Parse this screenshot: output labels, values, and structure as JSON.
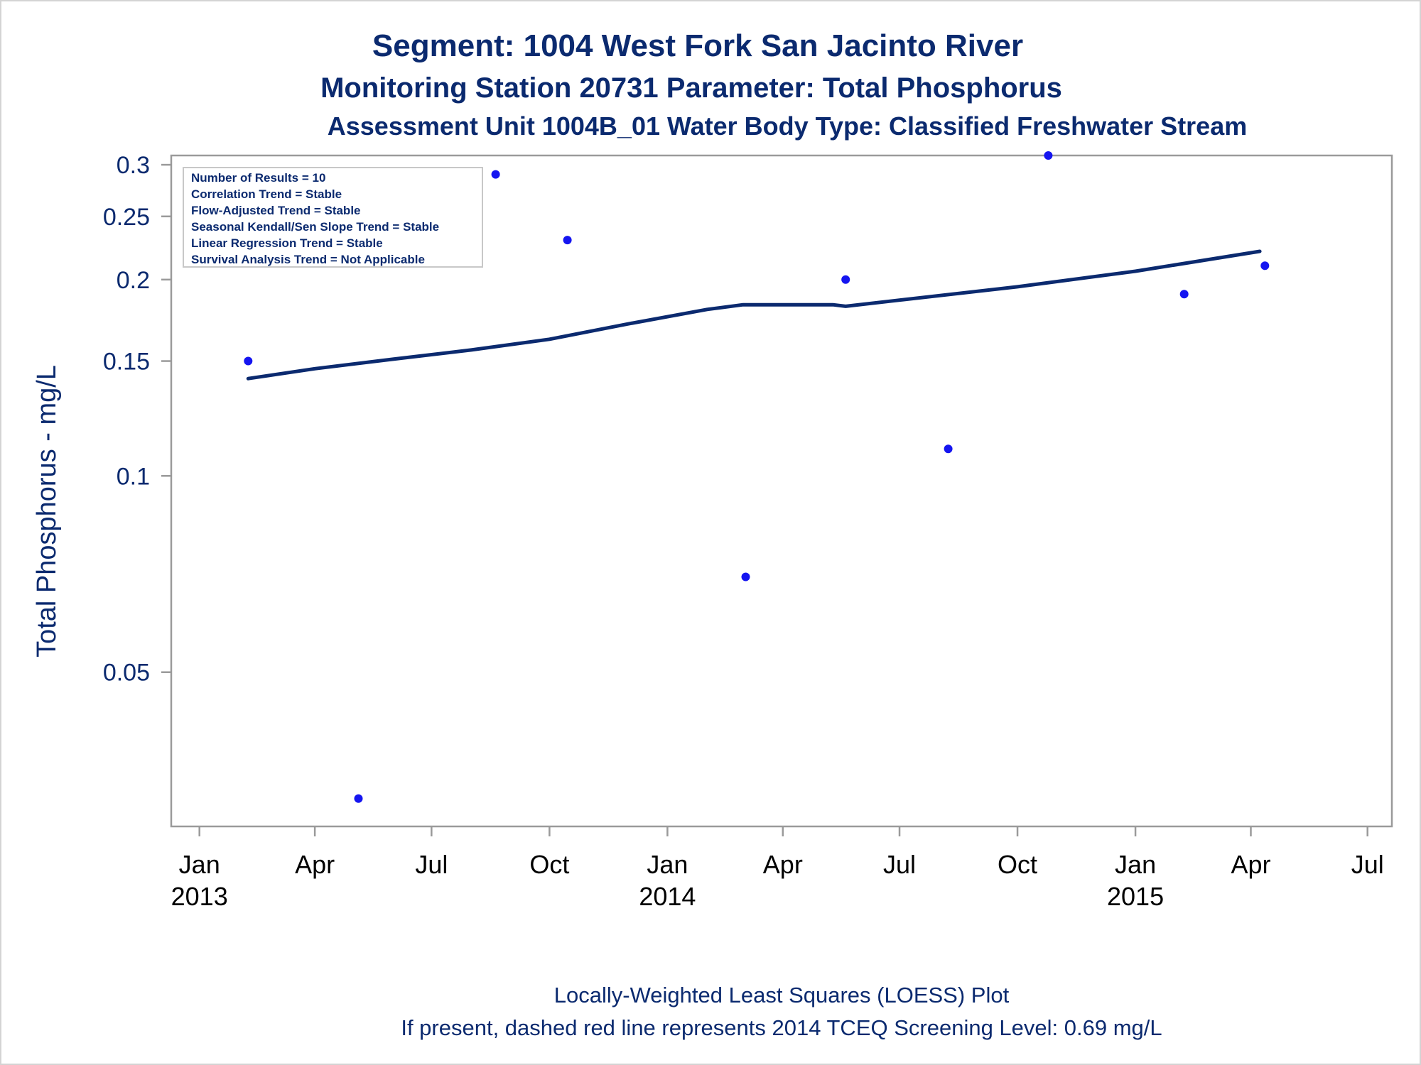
{
  "colors": {
    "title": "#0b2a6f",
    "axis_text": "#0b2a6f",
    "tick_label": "#000000",
    "points": "#1515f0",
    "trend_line": "#0b2a6f",
    "frame": "#9a9a9a",
    "stats_border": "#c8c8c8"
  },
  "header": {
    "title": "Segment: 1004  West Fork San Jacinto River",
    "subtitle1": "Monitoring Station 20731 Parameter: Total Phosphorus",
    "subtitle2": "Assessment Unit 1004B_01   Water Body Type: Classified Freshwater Stream"
  },
  "stats_box": [
    "Number of Results = 10",
    "Correlation Trend = Stable",
    "Flow-Adjusted Trend = Stable",
    "Seasonal Kendall/Sen Slope Trend = Stable",
    "Linear Regression Trend = Stable",
    "Survival Analysis Trend = Not Applicable"
  ],
  "footer": {
    "line1": "Locally-Weighted Least Squares (LOESS) Plot",
    "line2": "If present, dashed red line represents 2014 TCEQ Screening Level: 0.69 mg/L"
  },
  "chart_data": {
    "type": "scatter",
    "xlabel": "",
    "ylabel": "Total Phosphorus - mg/L",
    "y_scale": "log",
    "ylim": [
      0.029,
      0.31
    ],
    "y_ticks": [
      {
        "value": 0.05,
        "label": "0.05"
      },
      {
        "value": 0.1,
        "label": "0.1"
      },
      {
        "value": 0.15,
        "label": "0.15"
      },
      {
        "value": 0.2,
        "label": "0.2"
      },
      {
        "value": 0.25,
        "label": "0.25"
      },
      {
        "value": 0.3,
        "label": "0.3"
      }
    ],
    "xlim": [
      "2012-12-10",
      "2015-07-20"
    ],
    "x_ticks": [
      {
        "date": "2013-01-01",
        "label": "Jan",
        "year": "2013"
      },
      {
        "date": "2013-04-01",
        "label": "Apr",
        "year": ""
      },
      {
        "date": "2013-07-01",
        "label": "Jul",
        "year": ""
      },
      {
        "date": "2013-10-01",
        "label": "Oct",
        "year": ""
      },
      {
        "date": "2014-01-01",
        "label": "Jan",
        "year": "2014"
      },
      {
        "date": "2014-04-01",
        "label": "Apr",
        "year": ""
      },
      {
        "date": "2014-07-01",
        "label": "Jul",
        "year": ""
      },
      {
        "date": "2014-10-01",
        "label": "Oct",
        "year": ""
      },
      {
        "date": "2015-01-01",
        "label": "Jan",
        "year": "2015"
      },
      {
        "date": "2015-04-01",
        "label": "Apr",
        "year": ""
      },
      {
        "date": "2015-07-01",
        "label": "Jul",
        "year": ""
      }
    ],
    "series": [
      {
        "type": "scatter",
        "points": [
          {
            "x": "2013-02-08",
            "y": 0.15
          },
          {
            "x": "2013-05-05",
            "y": 0.032
          },
          {
            "x": "2013-08-20",
            "y": 0.29
          },
          {
            "x": "2013-10-15",
            "y": 0.23
          },
          {
            "x": "2014-03-03",
            "y": 0.07
          },
          {
            "x": "2014-05-20",
            "y": 0.2
          },
          {
            "x": "2014-08-08",
            "y": 0.11
          },
          {
            "x": "2014-10-25",
            "y": 0.31
          },
          {
            "x": "2015-02-08",
            "y": 0.19
          },
          {
            "x": "2015-04-12",
            "y": 0.21
          }
        ]
      },
      {
        "type": "line",
        "points": [
          {
            "x": "2013-02-08",
            "y": 0.141
          },
          {
            "x": "2013-04-01",
            "y": 0.146
          },
          {
            "x": "2013-06-01",
            "y": 0.151
          },
          {
            "x": "2013-08-01",
            "y": 0.156
          },
          {
            "x": "2013-10-01",
            "y": 0.162
          },
          {
            "x": "2013-12-01",
            "y": 0.171
          },
          {
            "x": "2014-02-01",
            "y": 0.18
          },
          {
            "x": "2014-03-01",
            "y": 0.183
          },
          {
            "x": "2014-05-10",
            "y": 0.183
          },
          {
            "x": "2014-05-20",
            "y": 0.182
          },
          {
            "x": "2014-07-01",
            "y": 0.186
          },
          {
            "x": "2014-10-01",
            "y": 0.195
          },
          {
            "x": "2015-01-01",
            "y": 0.206
          },
          {
            "x": "2015-04-08",
            "y": 0.221
          }
        ]
      }
    ]
  }
}
